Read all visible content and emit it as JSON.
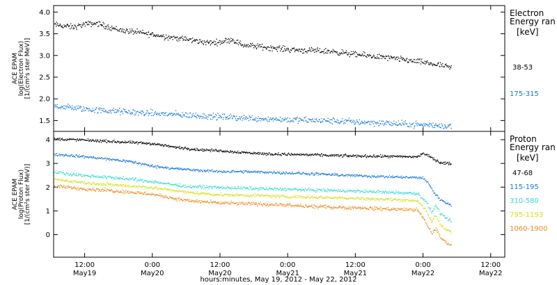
{
  "chart_data": {
    "type": "scatter",
    "xlabel": "hours:minutes, May 19, 2012 - May 22, 2012",
    "x_ticks": [
      {
        "time": "May 19 12:00",
        "hours": 12,
        "label": "12:00",
        "sublabel": "May19"
      },
      {
        "time": "May 20 00:00",
        "hours": 24,
        "label": "0:00",
        "sublabel": "May20"
      },
      {
        "time": "May 20 12:00",
        "hours": 36,
        "label": "12:00",
        "sublabel": "May20"
      },
      {
        "time": "May 21 00:00",
        "hours": 48,
        "label": "0:00",
        "sublabel": "May21"
      },
      {
        "time": "May 21 12:00",
        "hours": 60,
        "label": "12:00",
        "sublabel": "May21"
      },
      {
        "time": "May 22 00:00",
        "hours": 72,
        "label": "0:00",
        "sublabel": "May22"
      },
      {
        "time": "May 22 12:00",
        "hours": 84,
        "label": "12:00",
        "sublabel": "May22"
      }
    ],
    "xlim_hours": [
      6.5,
      86.5
    ],
    "panels": [
      {
        "id": "electron",
        "ylabel_lines": [
          "ACE EPAM",
          "log(Electron Flux)",
          "[1/(cm²s ster MeV)]"
        ],
        "ylim": [
          1.25,
          4.15
        ],
        "yticks": [
          1.5,
          2.0,
          2.5,
          3.0,
          3.5,
          4.0
        ],
        "ytick_labels": [
          "1.5",
          "2.0",
          "2.5",
          "3.0",
          "3.5",
          "4.0"
        ],
        "legend_title": [
          "Electron",
          "Energy ran"
        ],
        "legend_unit": "[keV]",
        "series": [
          {
            "name": "38-53",
            "color": "#000000",
            "noise": 0.04,
            "points": [
              [
                6.5,
                3.72
              ],
              [
                10,
                3.66
              ],
              [
                12,
                3.73
              ],
              [
                14,
                3.75
              ],
              [
                18,
                3.6
              ],
              [
                22,
                3.53
              ],
              [
                26,
                3.45
              ],
              [
                30,
                3.38
              ],
              [
                34,
                3.3
              ],
              [
                36,
                3.32
              ],
              [
                38,
                3.38
              ],
              [
                40,
                3.25
              ],
              [
                44,
                3.2
              ],
              [
                48,
                3.15
              ],
              [
                52,
                3.12
              ],
              [
                56,
                3.1
              ],
              [
                60,
                3.03
              ],
              [
                64,
                2.98
              ],
              [
                68,
                2.92
              ],
              [
                72,
                2.85
              ],
              [
                75,
                2.78
              ],
              [
                77,
                2.72
              ]
            ]
          },
          {
            "name": "175-315",
            "color": "#1777d8",
            "noise": 0.045,
            "points": [
              [
                6.5,
                1.85
              ],
              [
                10,
                1.8
              ],
              [
                14,
                1.75
              ],
              [
                20,
                1.7
              ],
              [
                26,
                1.66
              ],
              [
                32,
                1.62
              ],
              [
                38,
                1.58
              ],
              [
                44,
                1.55
              ],
              [
                50,
                1.52
              ],
              [
                56,
                1.5
              ],
              [
                62,
                1.47
              ],
              [
                68,
                1.43
              ],
              [
                72,
                1.41
              ],
              [
                77,
                1.38
              ]
            ]
          }
        ]
      },
      {
        "id": "proton",
        "ylabel_lines": [
          "ACE EPAM",
          "log(Proton Flux)",
          "[1/(cm²s ster MeV)]"
        ],
        "ylim": [
          -0.95,
          4.35
        ],
        "yticks": [
          0,
          1,
          2,
          3,
          4
        ],
        "ytick_labels": [
          "0",
          "1",
          "2",
          "3",
          "4"
        ],
        "legend_title": [
          "Proton",
          "Energy ran"
        ],
        "legend_unit": "[keV]",
        "series": [
          {
            "name": "47-68",
            "color": "#000000",
            "noise": 0.035,
            "points": [
              [
                6.5,
                4.05
              ],
              [
                12,
                4.0
              ],
              [
                16,
                3.95
              ],
              [
                20,
                3.9
              ],
              [
                24,
                3.85
              ],
              [
                28,
                3.7
              ],
              [
                32,
                3.6
              ],
              [
                36,
                3.55
              ],
              [
                40,
                3.48
              ],
              [
                44,
                3.42
              ],
              [
                48,
                3.4
              ],
              [
                52,
                3.38
              ],
              [
                56,
                3.35
              ],
              [
                60,
                3.33
              ],
              [
                64,
                3.32
              ],
              [
                68,
                3.3
              ],
              [
                71,
                3.3
              ],
              [
                72,
                3.45
              ],
              [
                73.5,
                3.25
              ],
              [
                75,
                3.05
              ],
              [
                77,
                3.0
              ]
            ]
          },
          {
            "name": "115-195",
            "color": "#1777d8",
            "noise": 0.035,
            "points": [
              [
                6.5,
                3.4
              ],
              [
                12,
                3.3
              ],
              [
                16,
                3.2
              ],
              [
                20,
                3.1
              ],
              [
                24,
                2.9
              ],
              [
                28,
                2.8
              ],
              [
                32,
                2.72
              ],
              [
                36,
                2.68
              ],
              [
                44,
                2.65
              ],
              [
                52,
                2.58
              ],
              [
                60,
                2.5
              ],
              [
                66,
                2.45
              ],
              [
                70,
                2.42
              ],
              [
                72,
                2.4
              ],
              [
                73,
                2.15
              ],
              [
                74,
                1.75
              ],
              [
                75,
                1.5
              ],
              [
                76,
                1.35
              ],
              [
                77,
                1.28
              ]
            ]
          },
          {
            "name": "310-580",
            "color": "#33dcd0",
            "noise": 0.04,
            "points": [
              [
                6.5,
                2.65
              ],
              [
                12,
                2.5
              ],
              [
                18,
                2.4
              ],
              [
                24,
                2.25
              ],
              [
                30,
                2.05
              ],
              [
                36,
                2.0
              ],
              [
                44,
                1.95
              ],
              [
                52,
                1.9
              ],
              [
                60,
                1.85
              ],
              [
                68,
                1.78
              ],
              [
                71,
                1.75
              ],
              [
                72.5,
                1.4
              ],
              [
                73.5,
                0.95
              ],
              [
                74.2,
                1.25
              ],
              [
                75,
                0.9
              ],
              [
                76,
                0.7
              ],
              [
                77,
                0.55
              ]
            ]
          },
          {
            "name": "795-1193",
            "color": "#d6e01c",
            "noise": 0.04,
            "points": [
              [
                6.5,
                2.35
              ],
              [
                12,
                2.2
              ],
              [
                18,
                2.1
              ],
              [
                24,
                2.0
              ],
              [
                30,
                1.8
              ],
              [
                36,
                1.7
              ],
              [
                44,
                1.65
              ],
              [
                52,
                1.6
              ],
              [
                60,
                1.55
              ],
              [
                68,
                1.48
              ],
              [
                71,
                1.45
              ],
              [
                72.5,
                1.0
              ],
              [
                73.5,
                0.55
              ],
              [
                74.2,
                0.85
              ],
              [
                75,
                0.45
              ],
              [
                76,
                0.25
              ],
              [
                77,
                0.1
              ]
            ]
          },
          {
            "name": "1060-1900",
            "color": "#ee8a1a",
            "noise": 0.045,
            "points": [
              [
                6.5,
                2.05
              ],
              [
                12,
                1.95
              ],
              [
                18,
                1.85
              ],
              [
                24,
                1.72
              ],
              [
                30,
                1.45
              ],
              [
                36,
                1.35
              ],
              [
                44,
                1.3
              ],
              [
                52,
                1.2
              ],
              [
                60,
                1.15
              ],
              [
                68,
                1.08
              ],
              [
                71,
                1.05
              ],
              [
                72.5,
                0.5
              ],
              [
                73.5,
                0.05
              ],
              [
                74.2,
                0.3
              ],
              [
                75,
                -0.1
              ],
              [
                76,
                -0.3
              ],
              [
                77,
                -0.45
              ]
            ]
          }
        ]
      }
    ]
  }
}
